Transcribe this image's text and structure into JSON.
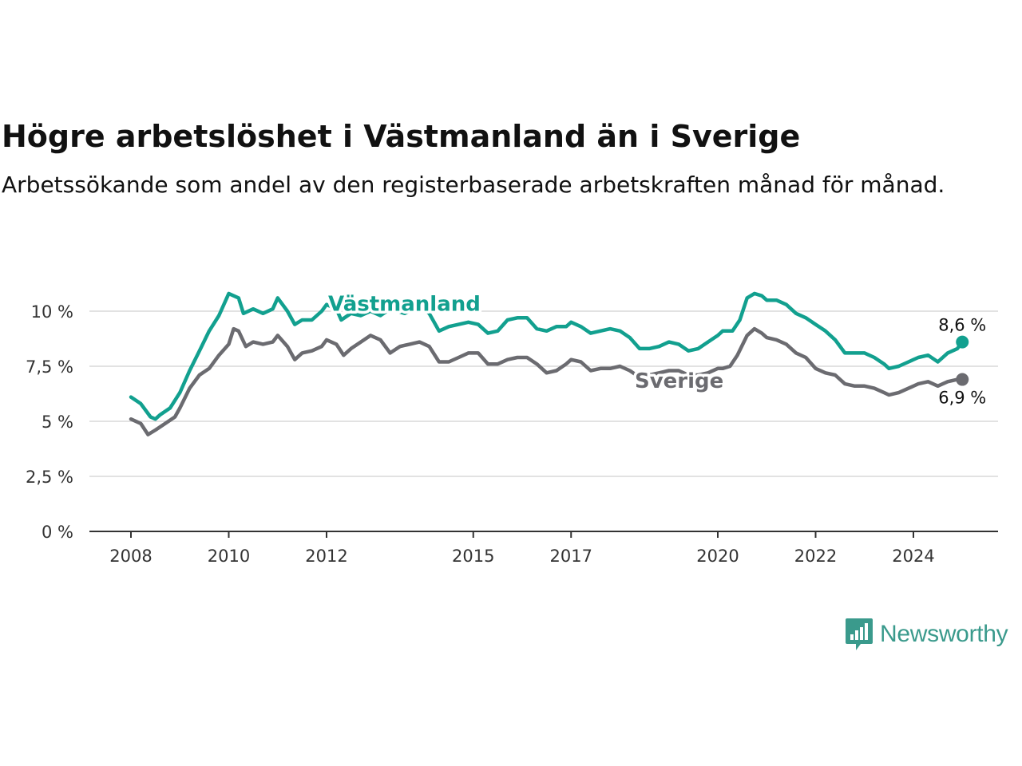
{
  "header": {
    "title": "Högre arbetslöshet i Västmanland än i Sverige",
    "subtitle": "Arbetssökande som andel av den registerbaserade arbetskraften månad för månad."
  },
  "logo": {
    "text": "Newsworthy",
    "icon": "newsworthy-bar-chart-icon",
    "color": "#3a9a8c"
  },
  "chart_data": {
    "type": "line",
    "x_unit": "year (decimal)",
    "xlim": [
      2007.2,
      2025.7
    ],
    "ylim": [
      0,
      11
    ],
    "grid": true,
    "yticks": [
      {
        "value": 0,
        "label": "0 %"
      },
      {
        "value": 2.5,
        "label": "2,5 %"
      },
      {
        "value": 5,
        "label": "5 %"
      },
      {
        "value": 7.5,
        "label": "7,5 %"
      },
      {
        "value": 10,
        "label": "10 %"
      }
    ],
    "xticks": [
      {
        "value": 2008,
        "label": "2008"
      },
      {
        "value": 2010,
        "label": "2010"
      },
      {
        "value": 2012,
        "label": "2012"
      },
      {
        "value": 2015,
        "label": "2015"
      },
      {
        "value": 2017,
        "label": "2017"
      },
      {
        "value": 2020,
        "label": "2020"
      },
      {
        "value": 2022,
        "label": "2022"
      },
      {
        "value": 2024,
        "label": "2024"
      }
    ],
    "series": [
      {
        "name": "Västmanland",
        "color": "#12a08f",
        "end_label": "8,6 %",
        "points": [
          [
            2008.0,
            6.1
          ],
          [
            2008.2,
            5.8
          ],
          [
            2008.4,
            5.2
          ],
          [
            2008.5,
            5.1
          ],
          [
            2008.6,
            5.3
          ],
          [
            2008.8,
            5.6
          ],
          [
            2009.0,
            6.3
          ],
          [
            2009.2,
            7.3
          ],
          [
            2009.4,
            8.2
          ],
          [
            2009.6,
            9.1
          ],
          [
            2009.8,
            9.8
          ],
          [
            2010.0,
            10.8
          ],
          [
            2010.2,
            10.6
          ],
          [
            2010.3,
            9.9
          ],
          [
            2010.5,
            10.1
          ],
          [
            2010.7,
            9.9
          ],
          [
            2010.9,
            10.1
          ],
          [
            2011.0,
            10.6
          ],
          [
            2011.2,
            10.0
          ],
          [
            2011.35,
            9.4
          ],
          [
            2011.5,
            9.6
          ],
          [
            2011.7,
            9.6
          ],
          [
            2011.9,
            10.0
          ],
          [
            2012.0,
            10.3
          ],
          [
            2012.2,
            10.1
          ],
          [
            2012.3,
            9.6
          ],
          [
            2012.5,
            9.9
          ],
          [
            2012.7,
            9.8
          ],
          [
            2012.9,
            10.0
          ],
          [
            2013.1,
            9.8
          ],
          [
            2013.3,
            10.1
          ],
          [
            2013.6,
            9.9
          ],
          [
            2013.9,
            10.3
          ],
          [
            2014.1,
            9.9
          ],
          [
            2014.3,
            9.1
          ],
          [
            2014.5,
            9.3
          ],
          [
            2014.7,
            9.4
          ],
          [
            2014.9,
            9.5
          ],
          [
            2015.1,
            9.4
          ],
          [
            2015.3,
            9.0
          ],
          [
            2015.5,
            9.1
          ],
          [
            2015.7,
            9.6
          ],
          [
            2015.9,
            9.7
          ],
          [
            2016.1,
            9.7
          ],
          [
            2016.3,
            9.2
          ],
          [
            2016.5,
            9.1
          ],
          [
            2016.7,
            9.3
          ],
          [
            2016.9,
            9.3
          ],
          [
            2017.0,
            9.5
          ],
          [
            2017.2,
            9.3
          ],
          [
            2017.4,
            9.0
          ],
          [
            2017.6,
            9.1
          ],
          [
            2017.8,
            9.2
          ],
          [
            2018.0,
            9.1
          ],
          [
            2018.2,
            8.8
          ],
          [
            2018.4,
            8.3
          ],
          [
            2018.6,
            8.3
          ],
          [
            2018.8,
            8.4
          ],
          [
            2019.0,
            8.6
          ],
          [
            2019.2,
            8.5
          ],
          [
            2019.4,
            8.2
          ],
          [
            2019.6,
            8.3
          ],
          [
            2019.8,
            8.6
          ],
          [
            2020.0,
            8.9
          ],
          [
            2020.1,
            9.1
          ],
          [
            2020.3,
            9.1
          ],
          [
            2020.45,
            9.6
          ],
          [
            2020.6,
            10.6
          ],
          [
            2020.75,
            10.8
          ],
          [
            2020.9,
            10.7
          ],
          [
            2021.0,
            10.5
          ],
          [
            2021.2,
            10.5
          ],
          [
            2021.4,
            10.3
          ],
          [
            2021.6,
            9.9
          ],
          [
            2021.8,
            9.7
          ],
          [
            2022.0,
            9.4
          ],
          [
            2022.2,
            9.1
          ],
          [
            2022.4,
            8.7
          ],
          [
            2022.6,
            8.1
          ],
          [
            2022.8,
            8.1
          ],
          [
            2023.0,
            8.1
          ],
          [
            2023.2,
            7.9
          ],
          [
            2023.4,
            7.6
          ],
          [
            2023.5,
            7.4
          ],
          [
            2023.7,
            7.5
          ],
          [
            2023.9,
            7.7
          ],
          [
            2024.1,
            7.9
          ],
          [
            2024.3,
            8.0
          ],
          [
            2024.5,
            7.7
          ],
          [
            2024.7,
            8.1
          ],
          [
            2024.9,
            8.3
          ],
          [
            2025.0,
            8.6
          ]
        ]
      },
      {
        "name": "Sverige",
        "color": "#6b6b70",
        "end_label": "6,9 %",
        "points": [
          [
            2008.0,
            5.1
          ],
          [
            2008.2,
            4.9
          ],
          [
            2008.35,
            4.4
          ],
          [
            2008.5,
            4.6
          ],
          [
            2008.7,
            4.9
          ],
          [
            2008.9,
            5.2
          ],
          [
            2009.0,
            5.6
          ],
          [
            2009.2,
            6.5
          ],
          [
            2009.4,
            7.1
          ],
          [
            2009.6,
            7.4
          ],
          [
            2009.8,
            8.0
          ],
          [
            2010.0,
            8.5
          ],
          [
            2010.1,
            9.2
          ],
          [
            2010.2,
            9.1
          ],
          [
            2010.35,
            8.4
          ],
          [
            2010.5,
            8.6
          ],
          [
            2010.7,
            8.5
          ],
          [
            2010.9,
            8.6
          ],
          [
            2011.0,
            8.9
          ],
          [
            2011.2,
            8.4
          ],
          [
            2011.35,
            7.8
          ],
          [
            2011.5,
            8.1
          ],
          [
            2011.7,
            8.2
          ],
          [
            2011.9,
            8.4
          ],
          [
            2012.0,
            8.7
          ],
          [
            2012.2,
            8.5
          ],
          [
            2012.35,
            8.0
          ],
          [
            2012.5,
            8.3
          ],
          [
            2012.7,
            8.6
          ],
          [
            2012.9,
            8.9
          ],
          [
            2013.1,
            8.7
          ],
          [
            2013.3,
            8.1
          ],
          [
            2013.5,
            8.4
          ],
          [
            2013.7,
            8.5
          ],
          [
            2013.9,
            8.6
          ],
          [
            2014.1,
            8.4
          ],
          [
            2014.3,
            7.7
          ],
          [
            2014.5,
            7.7
          ],
          [
            2014.7,
            7.9
          ],
          [
            2014.9,
            8.1
          ],
          [
            2015.1,
            8.1
          ],
          [
            2015.3,
            7.6
          ],
          [
            2015.5,
            7.6
          ],
          [
            2015.7,
            7.8
          ],
          [
            2015.9,
            7.9
          ],
          [
            2016.1,
            7.9
          ],
          [
            2016.3,
            7.6
          ],
          [
            2016.5,
            7.2
          ],
          [
            2016.7,
            7.3
          ],
          [
            2016.9,
            7.6
          ],
          [
            2017.0,
            7.8
          ],
          [
            2017.2,
            7.7
          ],
          [
            2017.4,
            7.3
          ],
          [
            2017.6,
            7.4
          ],
          [
            2017.8,
            7.4
          ],
          [
            2018.0,
            7.5
          ],
          [
            2018.2,
            7.3
          ],
          [
            2018.4,
            7.0
          ],
          [
            2018.6,
            7.1
          ],
          [
            2018.8,
            7.2
          ],
          [
            2019.0,
            7.3
          ],
          [
            2019.2,
            7.3
          ],
          [
            2019.4,
            7.1
          ],
          [
            2019.6,
            7.1
          ],
          [
            2019.8,
            7.2
          ],
          [
            2020.0,
            7.4
          ],
          [
            2020.1,
            7.4
          ],
          [
            2020.25,
            7.5
          ],
          [
            2020.4,
            8.0
          ],
          [
            2020.6,
            8.9
          ],
          [
            2020.75,
            9.2
          ],
          [
            2020.9,
            9.0
          ],
          [
            2021.0,
            8.8
          ],
          [
            2021.2,
            8.7
          ],
          [
            2021.4,
            8.5
          ],
          [
            2021.6,
            8.1
          ],
          [
            2021.8,
            7.9
          ],
          [
            2022.0,
            7.4
          ],
          [
            2022.2,
            7.2
          ],
          [
            2022.4,
            7.1
          ],
          [
            2022.6,
            6.7
          ],
          [
            2022.8,
            6.6
          ],
          [
            2023.0,
            6.6
          ],
          [
            2023.2,
            6.5
          ],
          [
            2023.4,
            6.3
          ],
          [
            2023.5,
            6.2
          ],
          [
            2023.7,
            6.3
          ],
          [
            2023.9,
            6.5
          ],
          [
            2024.1,
            6.7
          ],
          [
            2024.3,
            6.8
          ],
          [
            2024.5,
            6.6
          ],
          [
            2024.7,
            6.8
          ],
          [
            2024.9,
            6.9
          ],
          [
            2025.0,
            6.9
          ]
        ]
      }
    ]
  }
}
